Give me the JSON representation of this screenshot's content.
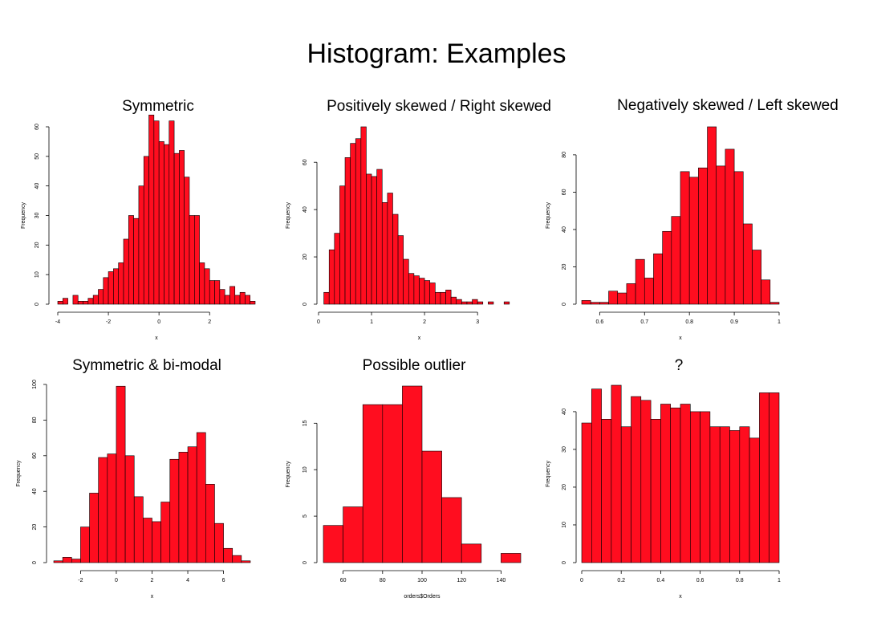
{
  "slide": {
    "title": "Histogram: Examples"
  },
  "chart_data": [
    {
      "type": "bar",
      "title": "Symmetric",
      "xlabel": "x",
      "ylabel": "Frequency",
      "bin_start": -4,
      "bin_width": 0.2,
      "values": [
        1,
        2,
        0,
        3,
        1,
        1,
        2,
        3,
        5,
        9,
        11,
        12,
        14,
        22,
        30,
        29,
        40,
        50,
        64,
        62,
        55,
        54,
        62,
        51,
        52,
        43,
        30,
        30,
        14,
        12,
        8,
        8,
        5,
        3,
        6,
        3,
        4,
        3,
        1
      ],
      "xlim": [
        -4.0,
        3.8
      ],
      "ylim": [
        0,
        60
      ],
      "xticks": [
        -4,
        -2,
        0,
        2
      ],
      "yticks": [
        0,
        10,
        20,
        30,
        40,
        50,
        60
      ]
    },
    {
      "type": "bar",
      "title": "Positively skewed / Right skewed",
      "xlabel": "x",
      "ylabel": "Frequency",
      "bin_start": 0.1,
      "bin_width": 0.1,
      "values": [
        5,
        23,
        30,
        50,
        62,
        68,
        70,
        75,
        55,
        54,
        57,
        43,
        47,
        38,
        29,
        19,
        13,
        12,
        11,
        10,
        9,
        5,
        5,
        6,
        3,
        2,
        1,
        1,
        2,
        1,
        0,
        1,
        0,
        0,
        1
      ],
      "xlim": [
        0,
        3.8
      ],
      "ylim": [
        0,
        75
      ],
      "xticks": [
        0,
        1,
        2,
        3
      ],
      "yticks": [
        0,
        20,
        40,
        60
      ]
    },
    {
      "type": "bar",
      "title": "Negatively skewed / Left skewed",
      "xlabel": "x",
      "ylabel": "Frequency",
      "bin_start": 0.56,
      "bin_width": 0.02,
      "values": [
        2,
        1,
        1,
        7,
        6,
        11,
        24,
        14,
        27,
        39,
        47,
        71,
        68,
        73,
        95,
        74,
        83,
        71,
        43,
        29,
        13,
        1
      ],
      "xlim": [
        0.56,
        1.0
      ],
      "ylim": [
        0,
        95
      ],
      "xticks": [
        0.6,
        0.7,
        0.8,
        0.9,
        1.0
      ],
      "yticks": [
        0,
        20,
        40,
        60,
        80
      ]
    },
    {
      "type": "bar",
      "title": "Symmetric & bi-modal",
      "xlabel": "x",
      "ylabel": "Frequency",
      "bin_start": -3.5,
      "bin_width": 0.5,
      "values": [
        1,
        3,
        2,
        20,
        39,
        59,
        61,
        99,
        60,
        37,
        25,
        23,
        34,
        58,
        62,
        65,
        73,
        44,
        22,
        8,
        4,
        1
      ],
      "xlim": [
        -3.5,
        7.5
      ],
      "ylim": [
        0,
        100
      ],
      "xticks": [
        -2,
        0,
        2,
        4,
        6
      ],
      "yticks": [
        0,
        20,
        40,
        60,
        80,
        100
      ]
    },
    {
      "type": "bar",
      "title": "Possible outlier",
      "xlabel": "orders$Orders",
      "ylabel": "Frequency",
      "bin_start": 50,
      "bin_width": 10,
      "values": [
        4,
        6,
        17,
        17,
        19,
        12,
        7,
        2,
        0,
        1
      ],
      "xlim": [
        50,
        150
      ],
      "ylim": [
        0,
        19
      ],
      "xticks": [
        60,
        80,
        100,
        120,
        140
      ],
      "yticks": [
        0,
        5,
        10,
        15
      ]
    },
    {
      "type": "bar",
      "title": "?",
      "xlabel": "x",
      "ylabel": "Frequency",
      "bin_start": 0,
      "bin_width": 0.05,
      "values": [
        37,
        46,
        38,
        47,
        36,
        44,
        43,
        38,
        42,
        41,
        42,
        40,
        40,
        36,
        36,
        35,
        36,
        33,
        45,
        45
      ],
      "xlim": [
        0,
        1.0
      ],
      "ylim": [
        0,
        47
      ],
      "xticks": [
        0.0,
        0.2,
        0.4,
        0.6,
        0.8,
        1.0
      ],
      "yticks": [
        0,
        10,
        20,
        30,
        40
      ]
    }
  ]
}
